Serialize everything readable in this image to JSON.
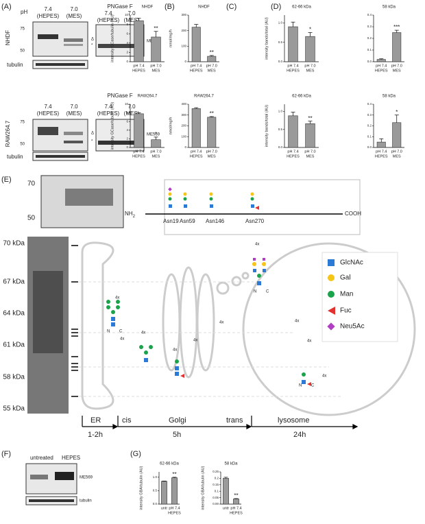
{
  "figure": {
    "A": {
      "label": "(A)",
      "ph": "pH",
      "lane1": [
        "7.4",
        "(HEPES)"
      ],
      "lane2": [
        "7.0",
        "(MES)"
      ],
      "pngase": "PNGase F",
      "marker_hi": "75",
      "marker_lo": "50",
      "delta": "Δ",
      "star": "*",
      "protein": "ME569",
      "loading": "tubulin",
      "cell_top": "NHDF",
      "cell_bottom": "RAW264.7"
    },
    "B": {
      "label": "(B)"
    },
    "C": {
      "label": "(C)"
    },
    "D": {
      "label": "(D)"
    },
    "E": {
      "label": "(E)",
      "gel_markers": [
        "70",
        "50"
      ],
      "kda": [
        "70 kDa",
        "67 kDa",
        "64 kDa",
        "61 kDa",
        "58 kDa",
        "55 kDa"
      ],
      "nterm": "NH",
      "nterm_sub": "2",
      "cterm": "COOH",
      "sites": [
        "Asn19",
        "Asn59",
        "Asn146",
        "Asn270"
      ],
      "repeat": "4x",
      "nc": [
        "N",
        "C"
      ],
      "legend": [
        "GlcNAc",
        "Gal",
        "Man",
        "Fuc",
        "Neu5Ac"
      ],
      "stages": [
        "ER",
        "cis",
        "Golgi",
        "trans",
        "lysosome"
      ],
      "times": [
        "1-2h",
        "5h",
        "24h"
      ]
    },
    "F": {
      "label": "(F)",
      "lanes": [
        "untreated",
        "HEPES"
      ],
      "protein": "ME569",
      "loading": "tubulin"
    },
    "G": {
      "label": "(G)"
    }
  },
  "chart_data": [
    {
      "type": "bar",
      "title": "NHDF",
      "ylabel": "intensity GCase/tubulin (AU)",
      "categories": [
        [
          "pH 7.4",
          "HEPES"
        ],
        [
          "pH 7.0",
          "MES"
        ]
      ],
      "values": [
        8.8,
        5.3
      ],
      "errors": [
        0.5,
        1.2
      ],
      "significance": "**",
      "ylim": [
        0,
        10
      ],
      "yticks": [
        0,
        2,
        4,
        6,
        8,
        10
      ],
      "color": "#9a9a9a"
    },
    {
      "type": "bar",
      "title": "NHDF",
      "ylabel": "nmol/mg/h",
      "categories": [
        [
          "pH 7.4",
          "HEPES"
        ],
        [
          "pH 7.0",
          "MES"
        ]
      ],
      "values": [
        222,
        35
      ],
      "errors": [
        18,
        5
      ],
      "significance": "**",
      "ylim": [
        0,
        300
      ],
      "yticks": [
        0,
        100,
        200,
        300
      ],
      "color": "#9a9a9a"
    },
    {
      "type": "bar",
      "title": "62-66 kDa",
      "ylabel": "intensity bands/total (AU)",
      "categories": [
        [
          "pH 7.4",
          "HEPES"
        ],
        [
          "pH 7.0",
          "MES"
        ]
      ],
      "values": [
        0.9,
        0.65
      ],
      "errors": [
        0.12,
        0.1
      ],
      "significance": "*",
      "ylim": [
        0,
        1.2
      ],
      "yticks": [
        {
          "value": 0,
          "label": "0.0"
        },
        0.5,
        {
          "value": 1,
          "label": "1.0"
        }
      ],
      "color": "#9a9a9a"
    },
    {
      "type": "bar",
      "title": "58 kDa",
      "categories": [
        [
          "pH 7.4",
          "HEPES"
        ],
        [
          "pH 7.0",
          "MES"
        ]
      ],
      "values": [
        0.02,
        0.25
      ],
      "errors": [
        0.005,
        0.02
      ],
      "significance": "***",
      "ylim": [
        0,
        0.4
      ],
      "yticks": [
        {
          "value": 0,
          "label": "0.0"
        },
        0.1,
        0.2,
        0.3,
        0.4
      ],
      "color": "#9a9a9a"
    },
    {
      "type": "bar",
      "title": "RAW264.7",
      "ylabel": "intensity GCase/tubulin (AU)",
      "categories": [
        [
          "pH 7.4",
          "HEPES"
        ],
        [
          "pH 7.0",
          "MES"
        ]
      ],
      "values": [
        7.8,
        1.8
      ],
      "errors": [
        0.2,
        0.6
      ],
      "significance": "*",
      "ylim": [
        0,
        10
      ],
      "yticks": [
        0,
        2,
        4,
        6,
        8,
        10
      ],
      "color": "#9a9a9a"
    },
    {
      "type": "bar",
      "title": "RAW264.7",
      "ylabel": "nmol/mg/h",
      "categories": [
        [
          "pH 7.4",
          "HEPES"
        ],
        [
          "pH 7.0",
          "MES"
        ]
      ],
      "values": [
        360,
        280
      ],
      "errors": [
        8,
        6
      ],
      "significance": "**",
      "ylim": [
        0,
        400
      ],
      "yticks": [
        0,
        100,
        200,
        300,
        400
      ],
      "color": "#9a9a9a"
    },
    {
      "type": "bar",
      "title": "62-66 kDa",
      "ylabel": "intensity bands/total (AU)",
      "categories": [
        [
          "pH 7.4",
          "HEPES"
        ],
        [
          "pH 7.0",
          "MES"
        ]
      ],
      "values": [
        0.88,
        0.66
      ],
      "errors": [
        0.1,
        0.07
      ],
      "significance": "**",
      "ylim": [
        0,
        1.2
      ],
      "yticks": [
        {
          "value": 0,
          "label": "0.0"
        },
        0.5,
        {
          "value": 1,
          "label": "1.0"
        }
      ],
      "color": "#9a9a9a"
    },
    {
      "type": "bar",
      "title": "58 kDa",
      "categories": [
        [
          "pH 7.4",
          "HEPES"
        ],
        [
          "pH 7.0",
          "MES"
        ]
      ],
      "values": [
        0.05,
        0.23
      ],
      "errors": [
        0.03,
        0.07
      ],
      "significance": "*",
      "ylim": [
        0,
        0.4
      ],
      "yticks": [
        {
          "value": 0,
          "label": "0.0"
        },
        0.1,
        0.2,
        0.3,
        0.4
      ],
      "color": "#9a9a9a"
    },
    {
      "type": "bar",
      "title": "62-66 kDa",
      "ylabel": "intensity GBA/tubulin (AU)",
      "categories": [
        [
          "untr"
        ],
        [
          "pH 7.4",
          "HEPES"
        ]
      ],
      "values": [
        0.85,
        0.98
      ],
      "errors": [
        0.01,
        0.02
      ],
      "significance": "**",
      "ylim": [
        0,
        1.2
      ],
      "yticks": [
        {
          "value": 0,
          "label": "0.0"
        },
        0.5,
        {
          "value": 1,
          "label": "1.0"
        }
      ],
      "color": "#9a9a9a"
    },
    {
      "type": "bar",
      "title": "58 kDa",
      "ylabel": "intensity GBA/tubulin (AU)",
      "categories": [
        [
          "untr"
        ],
        [
          "pH 7.4",
          "HEPES"
        ]
      ],
      "values": [
        0.2,
        0.04
      ],
      "errors": [
        0.008,
        0.003
      ],
      "significance": "**",
      "ylim": [
        0,
        0.25
      ],
      "yticks": [
        {
          "value": 0,
          "label": "0.00"
        },
        0.05,
        0.1,
        0.15,
        0.2,
        0.25
      ],
      "color": "#9a9a9a"
    }
  ]
}
